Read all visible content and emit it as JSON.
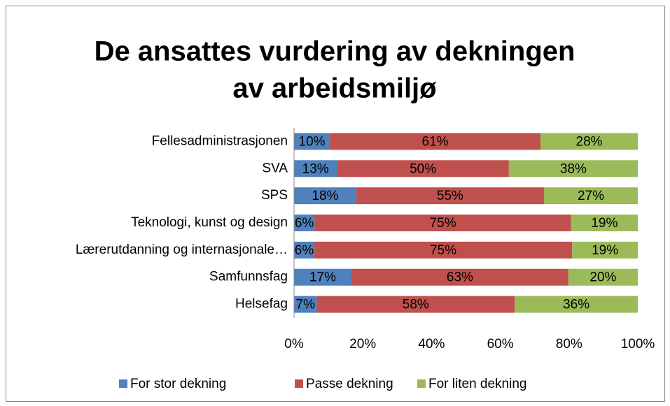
{
  "chart_data": {
    "type": "stacked_barh",
    "title": [
      "De ansattes vurdering av dekningen",
      "av arbeidsmiljø"
    ],
    "categories": [
      "Fellesadministrasjonen",
      "SVA",
      "SPS",
      "Teknologi, kunst og design",
      "Lærerutdanning og internasjonale…",
      "Samfunnsfag",
      "Helsefag"
    ],
    "series": [
      {
        "name": "For stor dekning",
        "color": "#4f81bd",
        "values": [
          10.4,
          12.5,
          18.1,
          6.0,
          5.9,
          16.7,
          6.6
        ],
        "value_labels": [
          "10%",
          "13%",
          "18%",
          "6%",
          "6%",
          "17%",
          "7%"
        ]
      },
      {
        "name": "Passe dekning",
        "color": "#c0504d",
        "values": [
          61.3,
          50.0,
          54.6,
          74.6,
          75.0,
          63.1,
          57.6
        ],
        "value_labels": [
          "61%",
          "50%",
          "55%",
          "75%",
          "75%",
          "63%",
          "58%"
        ]
      },
      {
        "name": "For liten dekning",
        "color": "#9bbb59",
        "values": [
          28.3,
          37.5,
          27.3,
          19.4,
          19.1,
          20.2,
          35.8
        ],
        "value_labels": [
          "28%",
          "38%",
          "27%",
          "19%",
          "19%",
          "20%",
          "36%"
        ]
      }
    ],
    "xlim": [
      0,
      100
    ],
    "xticks": [
      {
        "value": 0,
        "label": "0%"
      },
      {
        "value": 20,
        "label": "20%"
      },
      {
        "value": 40,
        "label": "40%"
      },
      {
        "value": 60,
        "label": "60%"
      },
      {
        "value": 80,
        "label": "80%"
      },
      {
        "value": 100,
        "label": "100%"
      }
    ],
    "legend": "bottom"
  }
}
